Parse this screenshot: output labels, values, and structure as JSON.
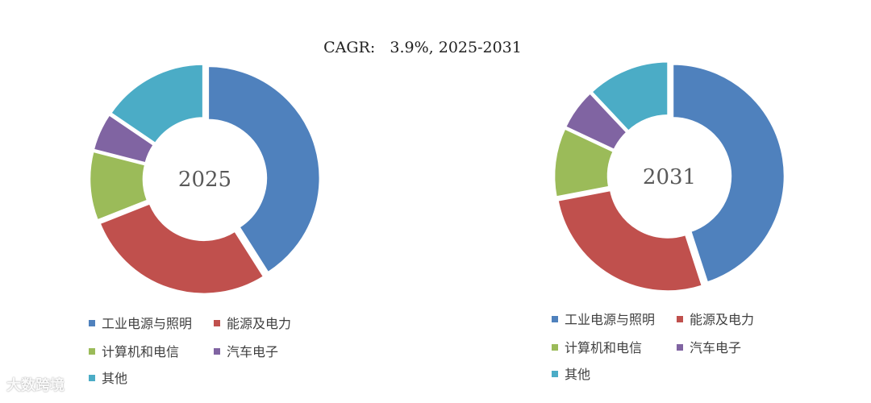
{
  "title": "CAGR:   3.9%, 2025-2031",
  "chart_data": [
    {
      "type": "pie",
      "center_label": "2025",
      "categories": [
        "工业电源与照明",
        "能源及电力",
        "计算机和电信",
        "汽车电子",
        "其他"
      ],
      "values": [
        41,
        28,
        10,
        5.5,
        15.5
      ]
    },
    {
      "type": "pie",
      "center_label": "2031",
      "categories": [
        "工业电源与照明",
        "能源及电力",
        "计算机和电信",
        "汽车电子",
        "其他"
      ],
      "values": [
        45,
        27,
        10,
        6,
        12
      ]
    }
  ],
  "legend": [
    "工业电源与照明",
    "能源及电力",
    "计算机和电信",
    "汽车电子",
    "其他"
  ],
  "colors": [
    "#4F81BD",
    "#C0504D",
    "#9BBB59",
    "#8064A2",
    "#4BACC6"
  ],
  "watermark": "大数跨境"
}
